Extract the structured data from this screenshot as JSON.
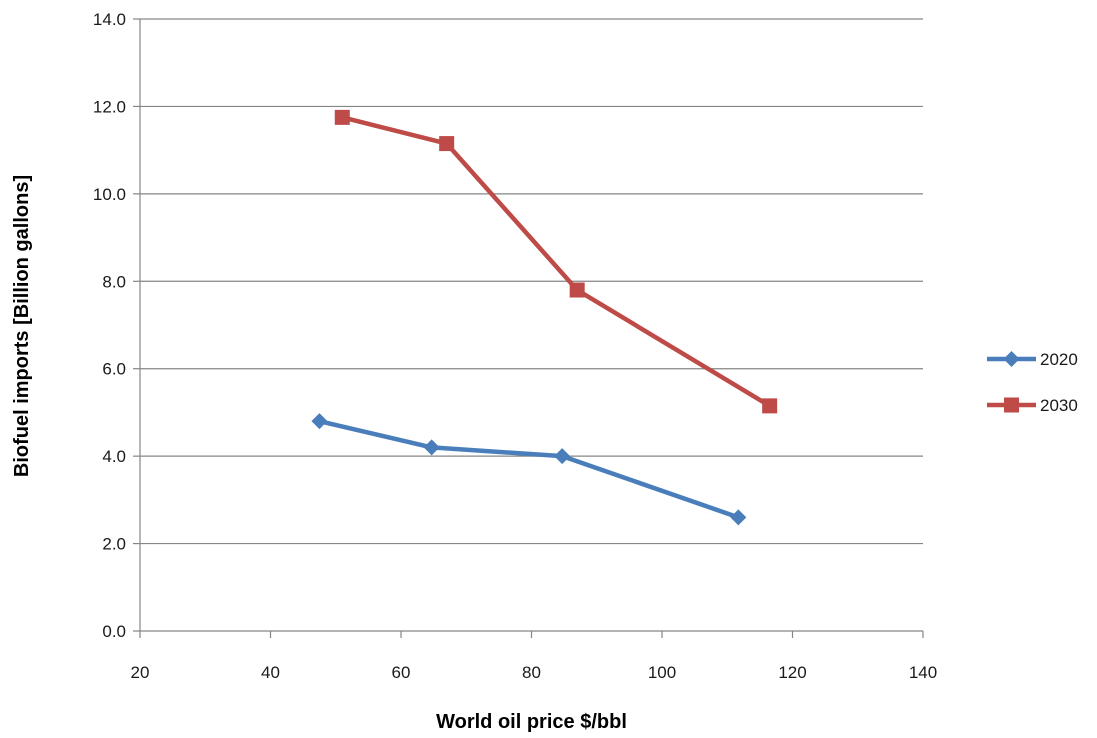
{
  "chart_data": {
    "type": "line",
    "title": "",
    "xlabel": "World oil price $/bbl",
    "ylabel": "Biofuel imports [Billion gallons]",
    "xlim": [
      20,
      140
    ],
    "ylim": [
      0,
      14
    ],
    "x_ticks": [
      "20",
      "40",
      "60",
      "80",
      "100",
      "120",
      "140"
    ],
    "x_tick_values": [
      20,
      40,
      60,
      80,
      100,
      120,
      140
    ],
    "y_ticks": [
      "0.0",
      "2.0",
      "4.0",
      "6.0",
      "8.0",
      "10.0",
      "12.0",
      "14.0"
    ],
    "y_tick_values": [
      0,
      2,
      4,
      6,
      8,
      10,
      12,
      14
    ],
    "grid": "horizontal",
    "legend_position": "right",
    "series": [
      {
        "name": "2020",
        "color": "#4a7ebb",
        "marker": "diamond",
        "points": [
          [
            47.5,
            4.8
          ],
          [
            64.7,
            4.2
          ],
          [
            84.7,
            4.0
          ],
          [
            111.7,
            2.6
          ]
        ]
      },
      {
        "name": "2030",
        "color": "#be4b48",
        "marker": "square",
        "points": [
          [
            51.0,
            11.75
          ],
          [
            67.0,
            11.15
          ],
          [
            87.0,
            7.8
          ],
          [
            116.5,
            5.15
          ]
        ]
      }
    ]
  }
}
